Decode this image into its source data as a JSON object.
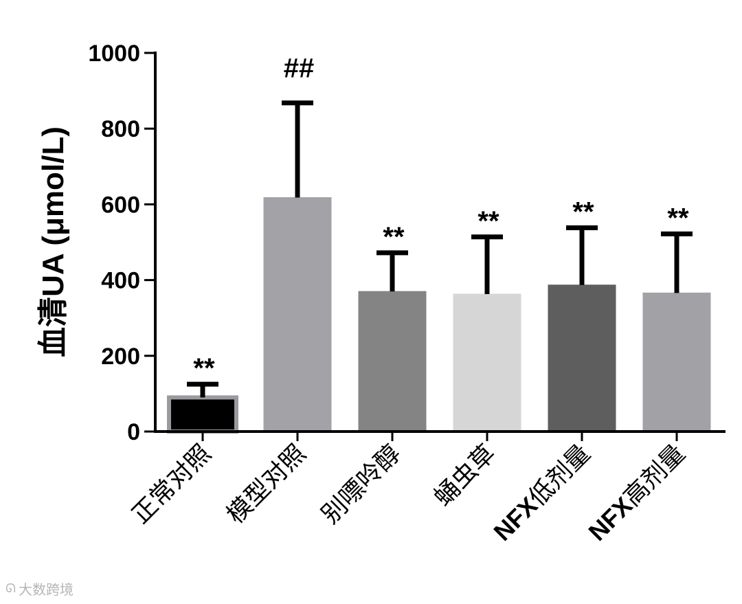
{
  "chart_data": {
    "type": "bar",
    "title": "",
    "xlabel": "",
    "ylabel": "血清UA (μmol/L)",
    "ylim": [
      0,
      1000
    ],
    "yticks": [
      0,
      200,
      400,
      600,
      800,
      1000
    ],
    "categories": [
      "正常对照",
      "模型对照",
      "别嘌呤醇",
      "蛹虫草",
      "NFX低剂量",
      "NFX高剂量"
    ],
    "values": [
      90,
      618,
      370,
      363,
      387,
      366
    ],
    "error_upper": [
      125,
      868,
      472,
      514,
      538,
      522
    ],
    "significance": [
      "**",
      "##",
      "**",
      "**",
      "**",
      "**"
    ],
    "bar_colors": [
      "#000000",
      "#a3a3a7",
      "#848484",
      "#d6d6d6",
      "#5e5e5e",
      "#a2a2a6"
    ],
    "grid": false,
    "legend": "none"
  },
  "watermark": {
    "icon": "logo-icon",
    "text": "大数跨境"
  }
}
